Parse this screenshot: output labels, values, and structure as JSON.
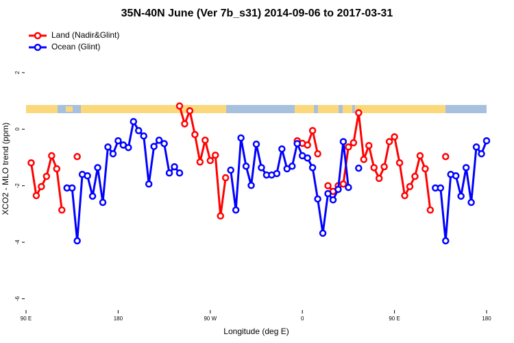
{
  "chart_data": {
    "type": "line",
    "title": "35N-40N June (Ver 7b_s31)   2014-09-06 to 2017-03-31",
    "x_label": "Longitude (deg E)",
    "y_label": "XCO2 - MLO trend (ppm)",
    "xlim": [
      90,
      540
    ],
    "ylim": [
      -6.4,
      3.6
    ],
    "xticks": [
      {
        "value": 90,
        "label": "90 E"
      },
      180,
      {
        "value": 270,
        "label": "90 W"
      },
      0,
      {
        "value": 450,
        "label": "90 E"
      },
      180
    ],
    "yticks": [
      -6,
      -4,
      -2,
      0,
      2
    ],
    "legend": "top-left",
    "x": [
      95,
      100,
      105,
      110,
      115,
      120,
      125,
      130,
      135,
      140,
      145,
      150,
      155,
      160,
      165,
      170,
      175,
      180,
      185,
      190,
      195,
      200,
      205,
      210,
      215,
      220,
      225,
      230,
      235,
      240,
      245,
      250,
      255,
      260,
      265,
      270,
      275,
      280,
      285,
      290,
      295,
      300,
      305,
      310,
      315,
      320,
      325,
      330,
      335,
      340,
      345,
      350,
      355,
      360,
      365,
      370,
      375,
      380,
      385,
      390,
      395,
      400,
      405,
      410,
      415,
      420,
      425,
      430,
      435,
      440,
      445,
      450,
      455,
      460,
      465,
      470,
      475,
      480,
      485,
      490,
      495,
      500,
      505,
      510,
      515,
      520,
      525,
      530,
      535,
      540
    ],
    "series": [
      {
        "name": "Land (Nadir&Glint)",
        "color": "#ff0000",
        "values": [
          -1.19,
          -2.35,
          -2.03,
          -1.67,
          -0.94,
          -1.4,
          -2.86,
          null,
          null,
          -0.97,
          null,
          null,
          null,
          null,
          null,
          null,
          null,
          null,
          null,
          null,
          null,
          null,
          null,
          null,
          null,
          null,
          null,
          null,
          null,
          0.82,
          0.19,
          0.65,
          -0.19,
          -1.16,
          -0.39,
          -1.11,
          -0.92,
          -3.07,
          -1.72,
          null,
          null,
          null,
          null,
          null,
          null,
          null,
          null,
          null,
          null,
          null,
          null,
          null,
          -0.41,
          -0.5,
          -0.56,
          -0.05,
          -0.87,
          null,
          -2.0,
          -2.2,
          -2.0,
          -1.94,
          -0.63,
          -0.48,
          0.58,
          -1.07,
          -0.58,
          -1.36,
          -1.74,
          -1.33,
          -0.44,
          -0.27,
          -1.19,
          -2.35,
          -2.03,
          -1.67,
          -0.94,
          -1.4,
          -2.86,
          null,
          null,
          -0.97,
          null,
          null,
          null,
          null,
          null,
          null,
          null,
          null
        ]
      },
      {
        "name": "Ocean (Glint)",
        "color": "#0000ff",
        "values": [
          null,
          null,
          null,
          null,
          null,
          null,
          null,
          -2.08,
          -2.08,
          -3.95,
          -1.6,
          -1.65,
          -2.37,
          -1.36,
          -2.59,
          -0.63,
          -0.87,
          -0.41,
          -0.56,
          -0.65,
          0.27,
          -0.05,
          -0.24,
          -1.94,
          -0.61,
          -0.39,
          -0.51,
          -1.55,
          -1.33,
          -1.55,
          null,
          null,
          null,
          null,
          null,
          null,
          null,
          null,
          null,
          -1.45,
          -2.86,
          -0.31,
          -1.31,
          -1.99,
          -0.53,
          -1.36,
          -1.62,
          -1.62,
          -1.57,
          -0.7,
          -1.4,
          -1.31,
          -0.51,
          -0.94,
          -1.02,
          -1.36,
          -2.47,
          -3.68,
          -2.28,
          -2.5,
          -2.13,
          -0.44,
          -2.06,
          null,
          -1.38,
          null,
          null,
          null,
          null,
          null,
          null,
          null,
          null,
          null,
          null,
          null,
          null,
          null,
          null,
          -2.08,
          -2.08,
          -3.95,
          -1.6,
          -1.65,
          -2.37,
          -1.36,
          -2.59,
          -0.63,
          -0.87,
          -0.41
        ]
      }
    ]
  }
}
